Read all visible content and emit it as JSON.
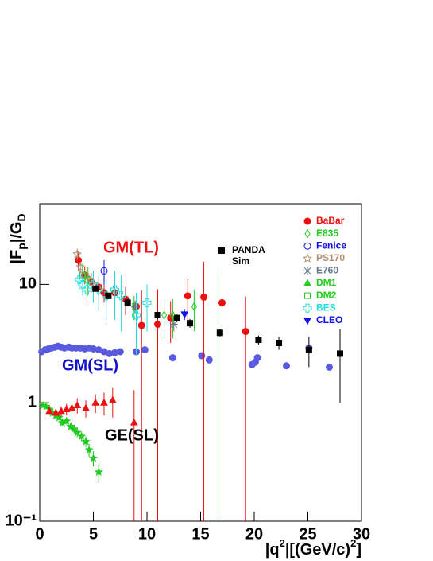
{
  "chart_data": {
    "type": "scatter",
    "ylabel": [
      "|F",
      "p",
      "|/G",
      "D"
    ],
    "xlabel": [
      "|q",
      "2",
      "|[(GeV/c)",
      "2",
      "]"
    ],
    "xlim": [
      0,
      30
    ],
    "xticks": [
      0,
      5,
      10,
      15,
      20,
      25,
      30
    ],
    "ylim": [
      0.1,
      48
    ],
    "log_y": true,
    "yticks": [
      {
        "value": 0.1,
        "label": "10⁻¹"
      },
      1,
      10
    ],
    "annotations": [
      {
        "text": "GM(TL)",
        "color": "#ee1111"
      },
      {
        "text": "GM(SL)",
        "color": "#1111cc"
      },
      {
        "text": "GE(SL)",
        "color": "#000000"
      }
    ],
    "series": [
      {
        "color": "#5a5ae0",
        "marker": "circle",
        "x": [
          0.2,
          0.5,
          0.8,
          1.1,
          1.4,
          1.7,
          2.0,
          2.3,
          2.7,
          3.0,
          3.4,
          3.8,
          4.2,
          4.6,
          5.0,
          5.5,
          6.0,
          6.5,
          7.0,
          7.5,
          9.0,
          9.8,
          12.4,
          15.1,
          15.8,
          19.8,
          20.1,
          20.3,
          23.0,
          25.1,
          27.0
        ],
        "values": [
          2.7,
          2.8,
          2.85,
          2.9,
          2.95,
          3.0,
          2.95,
          2.9,
          2.95,
          2.9,
          2.9,
          2.9,
          2.85,
          2.9,
          2.85,
          2.8,
          2.7,
          2.6,
          2.65,
          2.7,
          2.7,
          2.8,
          2.4,
          2.5,
          2.3,
          2.1,
          2.2,
          2.4,
          2.05,
          2.9,
          2.0
        ]
      },
      {
        "color": "#22cc22",
        "marker": "star",
        "x": [
          0.3,
          0.6,
          0.9,
          1.2,
          1.5,
          1.8,
          2.1,
          2.5,
          2.9,
          3.2,
          3.5,
          3.9,
          4.3,
          4.6,
          5.0,
          5.5
        ],
        "values": [
          0.95,
          0.93,
          0.88,
          0.82,
          0.78,
          0.75,
          0.68,
          0.7,
          0.63,
          0.6,
          0.56,
          0.52,
          0.47,
          0.4,
          0.34,
          0.26
        ],
        "errors": [
          0.03,
          0.03,
          0.03,
          0.04,
          0.04,
          0.04,
          0.04,
          0.05,
          0.05,
          0.05,
          0.05,
          0.05,
          0.05,
          0.05,
          0.05,
          0.05
        ]
      },
      {
        "color": "#ee1111",
        "marker": "triangle",
        "x": [
          0.9,
          1.5,
          2.0,
          2.5,
          3.0,
          3.5,
          4.3,
          5.2,
          6.0,
          6.8,
          8.8
        ],
        "values": [
          0.85,
          0.82,
          0.85,
          0.88,
          0.9,
          0.95,
          0.9,
          1.0,
          1.0,
          1.05,
          0.68
        ],
        "errors": [
          0.05,
          0.06,
          0.08,
          0.1,
          0.12,
          0.14,
          0.15,
          0.18,
          0.22,
          0.3,
          0.6
        ]
      },
      {
        "name": "BaBar",
        "color": "#ee1111",
        "marker": "circle",
        "x": [
          3.6,
          4.2,
          4.8,
          5.5,
          6.0,
          7.0,
          8.0,
          9.0,
          9.5,
          11.0,
          12.2,
          13.8,
          15.3,
          17.0,
          19.2
        ],
        "values": [
          16,
          12,
          10.5,
          9.5,
          8.5,
          8.5,
          7.5,
          6.5,
          4.5,
          4.6,
          5.2,
          8,
          7.8,
          7,
          4
        ],
        "errors": [
          3,
          2,
          2,
          1.5,
          1.5,
          2,
          2,
          2,
          4.4,
          4.5,
          2,
          3,
          7.7,
          6.9,
          3.9
        ]
      },
      {
        "name": "E835",
        "color": "#22cc22",
        "marker": "open-diamond",
        "x": [
          8.8,
          11.6,
          12.4,
          14.4
        ],
        "values": [
          6.5,
          5.5,
          5.5,
          6.5
        ],
        "errors": [
          1.5,
          2,
          2,
          2.5
        ]
      },
      {
        "name": "Fenice",
        "color": "#1111ee",
        "marker": "open-circle",
        "x": [
          6.0
        ],
        "values": [
          13
        ],
        "errors": [
          3
        ]
      },
      {
        "name": "PS170",
        "color": "#b09070",
        "marker": "open-star",
        "x": [
          3.5,
          3.8,
          4.2,
          4.6,
          5.0
        ],
        "values": [
          18,
          14,
          12,
          11,
          10
        ],
        "errors": [
          2,
          1.5,
          1.2,
          1,
          1
        ]
      },
      {
        "name": "E760",
        "color": "#667788",
        "marker": "x-star",
        "x": [
          8.9,
          12.5
        ],
        "values": [
          6.5,
          4.6
        ],
        "errors": [
          0.8,
          0.6
        ]
      },
      {
        "name": "DM1",
        "color": "#22cc22",
        "marker": "triangle",
        "x": [],
        "values": []
      },
      {
        "name": "DM2",
        "color": "#22cc22",
        "marker": "open-square",
        "x": [
          4.0,
          4.5
        ],
        "values": [
          12,
          11
        ],
        "errors": [
          3,
          3
        ]
      },
      {
        "name": "BES",
        "color": "#22dddd",
        "marker": "open-cross",
        "x": [
          3.7,
          4.0,
          4.4,
          5.0,
          5.5,
          6.2,
          7.0,
          7.6,
          9.0,
          10.0
        ],
        "values": [
          11,
          10,
          9,
          10,
          9,
          8,
          9,
          8,
          5.5,
          7
        ],
        "errors": [
          2,
          2,
          2,
          3,
          3,
          3,
          4,
          4,
          3,
          3
        ]
      },
      {
        "name": "CLEO",
        "color": "#1111ee",
        "marker": "down-triangle",
        "x": [
          13.5
        ],
        "values": [
          5.6
        ],
        "errors": [
          0.6
        ]
      },
      {
        "name": "PANDA Sim",
        "color": "#000000",
        "marker": "square",
        "x": [
          5.2,
          6.4,
          8.2,
          11.0,
          12.8,
          14.0,
          16.8,
          20.4,
          22.3,
          25.1,
          28.0
        ],
        "values": [
          9.2,
          8,
          7,
          5.5,
          5.2,
          4.7,
          3.9,
          3.4,
          3.2,
          2.8,
          2.6
        ],
        "errors": [
          0.5,
          0.5,
          0.5,
          0.4,
          0.4,
          0.4,
          0.3,
          0.3,
          0.4,
          0.8,
          1.6
        ]
      }
    ]
  }
}
